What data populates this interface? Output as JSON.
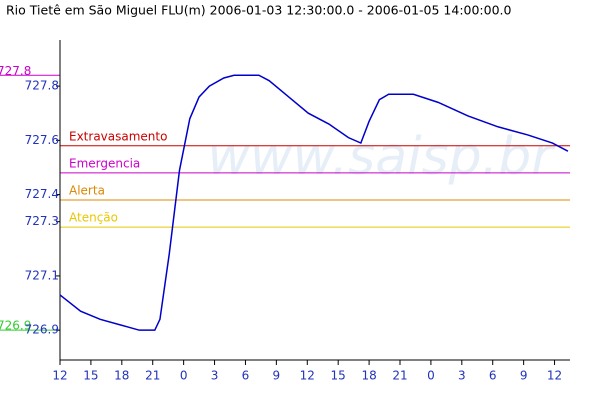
{
  "chart_data": {
    "type": "line",
    "title": "Rio Tietê em São Miguel FLU(m) 2006-01-03 12:30:00.0 - 2006-01-05 14:00:00.0",
    "watermark": "www.saisp.br",
    "x": [
      12,
      14,
      15.9,
      17.8,
      19.7,
      21.2,
      21.7,
      22.6,
      23.6,
      24.6,
      25.5,
      26.5,
      27.9,
      28.9,
      31.3,
      32.3,
      34.2,
      36.1,
      38.1,
      40,
      41.2,
      42,
      43,
      43.9,
      46.3,
      48.7,
      51.6,
      54.5,
      57.4,
      59.8,
      61.3
    ],
    "series": [
      {
        "color": "#0000cc",
        "values": [
          727.03,
          726.97,
          726.94,
          726.92,
          726.9,
          726.9,
          726.94,
          727.18,
          727.49,
          727.68,
          727.76,
          727.8,
          727.83,
          727.84,
          727.84,
          727.82,
          727.76,
          727.7,
          727.66,
          727.61,
          727.59,
          727.67,
          727.75,
          727.77,
          727.77,
          727.74,
          727.69,
          727.65,
          727.62,
          727.59,
          727.56
        ]
      }
    ],
    "xlim": [
      12,
      61.5
    ],
    "xticks": [
      {
        "value": 12,
        "label": "12"
      },
      {
        "value": 15,
        "label": "15"
      },
      {
        "value": 18,
        "label": "18"
      },
      {
        "value": 21,
        "label": "21"
      },
      {
        "value": 24,
        "label": "0"
      },
      {
        "value": 27,
        "label": "3"
      },
      {
        "value": 30,
        "label": "6"
      },
      {
        "value": 33,
        "label": "9"
      },
      {
        "value": 36,
        "label": "12"
      },
      {
        "value": 39,
        "label": "15"
      },
      {
        "value": 42,
        "label": "18"
      },
      {
        "value": 45,
        "label": "21"
      },
      {
        "value": 48,
        "label": "0"
      },
      {
        "value": 51,
        "label": "3"
      },
      {
        "value": 54,
        "label": "6"
      },
      {
        "value": 57,
        "label": "9"
      },
      {
        "value": 60,
        "label": "12"
      }
    ],
    "ylim": [
      726.79,
      727.97
    ],
    "yticks": [
      727.8,
      727.6,
      727.4,
      727.3,
      727.1,
      726.9
    ],
    "thresholds": [
      {
        "name": "Extravasamento",
        "value": 727.58,
        "color": "#cc0000"
      },
      {
        "name": "Emergencia",
        "value": 727.48,
        "color": "#cc00cc"
      },
      {
        "name": "Alerta",
        "value": 727.38,
        "color": "#dd8800"
      },
      {
        "name": "Atenção",
        "value": 727.28,
        "color": "#e8c800"
      }
    ],
    "max_marker": {
      "value": 727.84,
      "label": "727.8",
      "color": "#cc00cc"
    },
    "min_marker": {
      "value": 726.9,
      "label": "726.9",
      "color": "#33cc33"
    }
  }
}
